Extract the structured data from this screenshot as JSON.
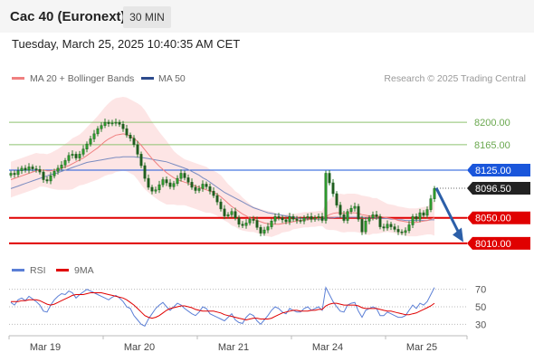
{
  "header": {
    "instrument": "Cac 40 (Euronext)",
    "timeframe": "30 MIN",
    "datetime": "Tuesday, March 25, 2025 10:40:35 AM CET"
  },
  "legend": {
    "ma20_label": "MA 20 + Bollinger Bands",
    "ma20_color": "#f08080",
    "ma50_label": "MA 50",
    "ma50_color": "#2c4a8c",
    "credit": "Research © 2025 Trading Central"
  },
  "rsi_legend": {
    "rsi_label": "RSI",
    "rsi_color": "#5b7fd6",
    "ma_label": "9MA",
    "ma_color": "#e00000"
  },
  "chart_data": {
    "type": "candlestick",
    "ylim": [
      7980,
      8250
    ],
    "x_ticks": [
      "Mar 19",
      "Mar 20",
      "Mar 21",
      "Mar 24",
      "Mar 25"
    ],
    "levels": [
      {
        "value": 8200,
        "label": "8200.00",
        "color": "#8dc26f",
        "style": "thin"
      },
      {
        "value": 8165,
        "label": "8165.00",
        "color": "#8dc26f",
        "style": "thin"
      },
      {
        "value": 8125,
        "label": "8125.00",
        "color": "#1a56db",
        "style": "thin"
      },
      {
        "value": 8050,
        "label": "8050.00",
        "color": "#e00000",
        "style": "thick"
      },
      {
        "value": 8010,
        "label": "8010.00",
        "color": "#e00000",
        "style": "thick"
      }
    ],
    "last_price": {
      "value": 8096.5,
      "label": "8096.50"
    },
    "forecast_arrow": {
      "from": 8097,
      "to": 8012
    },
    "close_prices": [
      8120,
      8118,
      8124,
      8128,
      8125,
      8130,
      8127,
      8126,
      8122,
      8110,
      8108,
      8116,
      8123,
      8128,
      8133,
      8140,
      8148,
      8150,
      8144,
      8150,
      8158,
      8166,
      8174,
      8182,
      8190,
      8195,
      8200,
      8198,
      8199,
      8200,
      8197,
      8190,
      8180,
      8175,
      8165,
      8150,
      8132,
      8112,
      8098,
      8092,
      8094,
      8102,
      8110,
      8105,
      8099,
      8104,
      8112,
      8120,
      8113,
      8106,
      8098,
      8093,
      8096,
      8103,
      8099,
      8092,
      8085,
      8075,
      8064,
      8053,
      8055,
      8060,
      8050,
      8040,
      8038,
      8042,
      8048,
      8046,
      8035,
      8026,
      8031,
      8036,
      8045,
      8052,
      8050,
      8047,
      8044,
      8052,
      8048,
      8046,
      8045,
      8050,
      8052,
      8048,
      8050,
      8052,
      8046,
      8120,
      8105,
      8088,
      8070,
      8055,
      8046,
      8060,
      8065,
      8068,
      8048,
      8028,
      8045,
      8050,
      8055,
      8052,
      8036,
      8034,
      8040,
      8036,
      8032,
      8028,
      8027,
      8030,
      8039,
      8052,
      8048,
      8058,
      8054,
      8063,
      8080,
      8096
    ],
    "ma20": [
      8110,
      8112,
      8114,
      8116,
      8118,
      8120,
      8122,
      8124,
      8125,
      8125,
      8124,
      8124,
      8125,
      8126,
      8128,
      8130,
      8132,
      8135,
      8138,
      8141,
      8144,
      8148,
      8152,
      8156,
      8160,
      8165,
      8170,
      8174,
      8177,
      8180,
      8181,
      8182,
      8181,
      8178,
      8175,
      8170,
      8164,
      8157,
      8150,
      8143,
      8137,
      8131,
      8126,
      8121,
      8117,
      8113,
      8110,
      8108,
      8106,
      8104,
      8102,
      8100,
      8098,
      8096,
      8094,
      8092,
      8090,
      8087,
      8083,
      8078,
      8073,
      8068,
      8064,
      8060,
      8056,
      8053,
      8050,
      8048,
      8046,
      8044,
      8042,
      8041,
      8040,
      8040,
      8040,
      8041,
      8042,
      8043,
      8044,
      8045,
      8046,
      8047,
      8047,
      8048,
      8048,
      8049,
      8049,
      8052,
      8055,
      8057,
      8058,
      8058,
      8057,
      8058,
      8058,
      8058,
      8057,
      8055,
      8054,
      8053,
      8053,
      8053,
      8052,
      8051,
      8050,
      8049,
      8048,
      8046,
      8045,
      8044,
      8043,
      8043,
      8043,
      8044,
      8045,
      8046,
      8048,
      8050
    ],
    "ma50": [
      8096,
      8098,
      8100,
      8102,
      8104,
      8106,
      8108,
      8110,
      8112,
      8114,
      8116,
      8118,
      8119,
      8121,
      8123,
      8125,
      8127,
      8129,
      8131,
      8133,
      8135,
      8137,
      8138,
      8139,
      8140,
      8141,
      8142,
      8143,
      8144,
      8145,
      8145,
      8146,
      8146,
      8146,
      8146,
      8145,
      8145,
      8144,
      8143,
      8142,
      8141,
      8140,
      8139,
      8138,
      8136,
      8134,
      8132,
      8130,
      8128,
      8126,
      8123,
      8120,
      8117,
      8113,
      8110,
      8106,
      8102,
      8098,
      8094,
      8090,
      8087,
      8084,
      8081,
      8078,
      8075,
      8072,
      8069,
      8066,
      8064,
      8062,
      8060,
      8058,
      8057,
      8056,
      8055,
      8054,
      8053,
      8052,
      8051,
      8050,
      8049,
      8049,
      8048,
      8048,
      8048,
      8048,
      8048,
      8049,
      8050,
      8050,
      8051,
      8051,
      8051,
      8051,
      8051,
      8051,
      8051,
      8051,
      8050,
      8050,
      8050,
      8050,
      8049,
      8049,
      8049,
      8048,
      8048,
      8047,
      8047,
      8046,
      8046,
      8046,
      8046,
      8046,
      8046,
      8046,
      8047,
      8047
    ],
    "bb_width": [
      28,
      28,
      28,
      28,
      28,
      28,
      28,
      28,
      26,
      26,
      26,
      28,
      30,
      32,
      34,
      36,
      38,
      40,
      40,
      40,
      42,
      44,
      46,
      48,
      50,
      52,
      54,
      56,
      58,
      58,
      58,
      58,
      58,
      58,
      58,
      60,
      62,
      62,
      60,
      58,
      56,
      54,
      52,
      50,
      46,
      42,
      40,
      38,
      36,
      36,
      36,
      36,
      36,
      36,
      36,
      34,
      34,
      34,
      34,
      32,
      30,
      30,
      28,
      28,
      26,
      24,
      22,
      20,
      20,
      20,
      20,
      20,
      20,
      18,
      16,
      14,
      14,
      14,
      12,
      12,
      12,
      12,
      12,
      12,
      12,
      12,
      12,
      20,
      24,
      26,
      28,
      30,
      30,
      30,
      30,
      30,
      30,
      30,
      30,
      30,
      28,
      28,
      26,
      24,
      22,
      22,
      22,
      22,
      22,
      22,
      22,
      22,
      22,
      22,
      22,
      22,
      24,
      28
    ],
    "rsi": {
      "ylim": [
        20,
        80
      ],
      "ticks": [
        70,
        50,
        30
      ],
      "rsi_values": [
        55,
        52,
        58,
        60,
        57,
        62,
        59,
        56,
        52,
        45,
        44,
        52,
        58,
        62,
        65,
        64,
        68,
        66,
        60,
        64,
        67,
        70,
        68,
        66,
        64,
        62,
        60,
        58,
        61,
        63,
        60,
        56,
        50,
        48,
        40,
        35,
        30,
        28,
        36,
        42,
        48,
        52,
        55,
        50,
        46,
        50,
        54,
        52,
        48,
        45,
        42,
        40,
        44,
        50,
        48,
        42,
        40,
        38,
        36,
        34,
        38,
        42,
        35,
        32,
        31,
        38,
        42,
        40,
        34,
        30,
        35,
        40,
        46,
        50,
        48,
        44,
        42,
        48,
        46,
        44,
        44,
        48,
        50,
        46,
        48,
        50,
        46,
        72,
        64,
        56,
        50,
        45,
        44,
        52,
        54,
        55,
        45,
        38,
        46,
        48,
        50,
        48,
        40,
        40,
        44,
        42,
        40,
        38,
        38,
        40,
        46,
        52,
        48,
        54,
        52,
        56,
        64,
        72
      ],
      "ma9_values": [
        56,
        56,
        56,
        57,
        57,
        58,
        58,
        58,
        57,
        55,
        53,
        52,
        53,
        55,
        57,
        59,
        61,
        63,
        64,
        64,
        64,
        65,
        66,
        66,
        66,
        66,
        65,
        64,
        63,
        62,
        61,
        60,
        58,
        55,
        52,
        48,
        44,
        40,
        38,
        37,
        38,
        40,
        43,
        46,
        48,
        49,
        50,
        51,
        51,
        50,
        49,
        47,
        46,
        45,
        45,
        45,
        45,
        44,
        43,
        41,
        40,
        39,
        38,
        37,
        36,
        35,
        36,
        37,
        37,
        36,
        36,
        36,
        37,
        39,
        41,
        43,
        44,
        45,
        46,
        46,
        45,
        45,
        45,
        46,
        46,
        47,
        47,
        51,
        53,
        54,
        54,
        53,
        52,
        52,
        52,
        52,
        51,
        49,
        48,
        48,
        48,
        48,
        47,
        46,
        45,
        45,
        44,
        43,
        42,
        41,
        41,
        42,
        43,
        45,
        47,
        49,
        51,
        54
      ]
    }
  }
}
